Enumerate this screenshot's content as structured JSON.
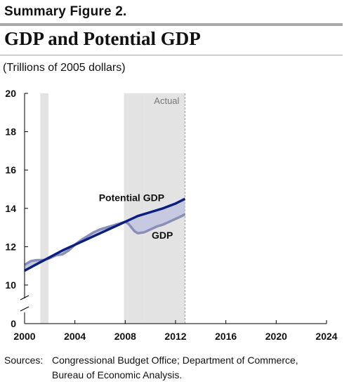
{
  "figure_label": "Summary Figure 2.",
  "title": "GDP and Potential GDP",
  "units": "(Trillions of 2005 dollars)",
  "source": {
    "label": "Sources:",
    "line1": "Congressional Budget Office; Department of Commerce,",
    "line2": "Bureau of Economic Analysis."
  },
  "chart_data": {
    "type": "line",
    "xlim": [
      2000,
      2024
    ],
    "ylim": [
      0,
      20
    ],
    "xticks": [
      2000,
      2004,
      2008,
      2012,
      2016,
      2020,
      2024
    ],
    "yticks": [
      0,
      10,
      12,
      14,
      16,
      18,
      20
    ],
    "axis_break_between": [
      0,
      10
    ],
    "grid": false,
    "recession_shading": [
      [
        2001.25,
        2001.9
      ],
      [
        2007.9,
        2009.5
      ]
    ],
    "actual_region": {
      "from": 2009.5,
      "to": 2012.75,
      "label": "Actual"
    },
    "band_fill_color": "#c6c9df",
    "shading_color": "#e3e3e3",
    "series": [
      {
        "name": "Potential GDP",
        "color": "#0b1f80",
        "x": [
          2000,
          2001,
          2002,
          2003,
          2004,
          2005,
          2006,
          2007,
          2008,
          2009,
          2010,
          2011,
          2012,
          2012.75
        ],
        "y": [
          10.75,
          11.1,
          11.45,
          11.8,
          12.1,
          12.4,
          12.7,
          13.0,
          13.3,
          13.6,
          13.8,
          14.0,
          14.25,
          14.5
        ]
      },
      {
        "name": "GDP",
        "color": "#8a8fb8",
        "x": [
          2000,
          2000.5,
          2001,
          2001.5,
          2002,
          2002.5,
          2003,
          2003.5,
          2004,
          2004.5,
          2005,
          2005.5,
          2006,
          2006.5,
          2007,
          2007.5,
          2008,
          2008.25,
          2008.5,
          2008.75,
          2009,
          2009.5,
          2010,
          2010.5,
          2011,
          2011.5,
          2012,
          2012.5,
          2012.75
        ],
        "y": [
          11.05,
          11.25,
          11.3,
          11.3,
          11.4,
          11.55,
          11.6,
          11.8,
          12.1,
          12.35,
          12.55,
          12.75,
          12.9,
          13.0,
          13.1,
          13.2,
          13.3,
          13.2,
          13.0,
          12.8,
          12.7,
          12.75,
          12.9,
          13.05,
          13.15,
          13.3,
          13.45,
          13.6,
          13.7
        ]
      }
    ]
  }
}
